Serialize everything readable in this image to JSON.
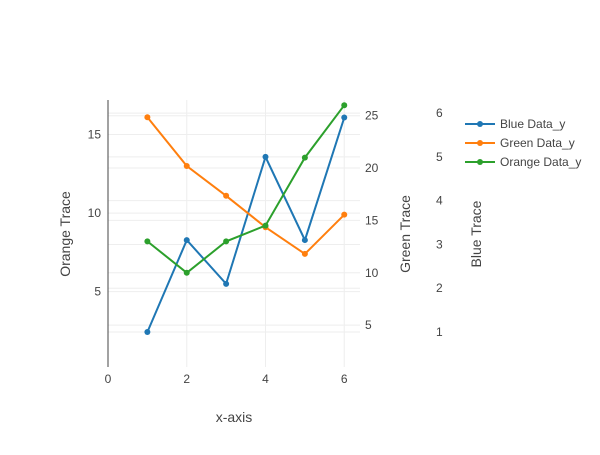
{
  "chart_data": {
    "type": "line",
    "title": "",
    "x": [
      1,
      2,
      3,
      4,
      5,
      6
    ],
    "xlabel": "x-axis",
    "xlim": [
      0,
      6.4
    ],
    "xticks": [
      0,
      2,
      4,
      6
    ],
    "axes": {
      "left": {
        "label": "Orange Trace",
        "ylim": [
          0.2,
          17.2
        ],
        "ticks": [
          5,
          10,
          15
        ]
      },
      "right_inner": {
        "label": "Green Trace",
        "ylim": [
          1,
          26.5
        ],
        "ticks": [
          5,
          10,
          15,
          20,
          25
        ]
      },
      "right_outer": {
        "label": "Blue Trace",
        "ylim": [
          0.2,
          6.3
        ],
        "ticks": [
          1,
          2,
          3,
          4,
          5,
          6
        ]
      }
    },
    "series": [
      {
        "name": "Blue Data_y",
        "axis": "right_outer",
        "color": "#1f77b4",
        "values": [
          1.0,
          3.1,
          2.1,
          5.0,
          3.1,
          5.9
        ]
      },
      {
        "name": "Green Data_y",
        "axis": "left",
        "color": "#ff7f0e",
        "values": [
          16.1,
          13.0,
          11.1,
          9.1,
          7.4,
          9.9
        ]
      },
      {
        "name": "Orange Data_y",
        "axis": "right_inner",
        "color": "#2ca02c",
        "values": [
          13.0,
          10.0,
          13.0,
          14.5,
          21.0,
          26.0
        ]
      }
    ],
    "grid": true,
    "legend_position": "top-right"
  }
}
